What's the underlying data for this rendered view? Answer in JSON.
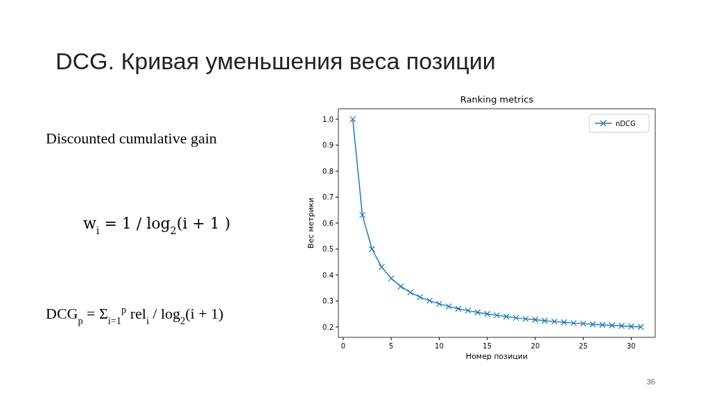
{
  "chart_data": {
    "type": "line",
    "title": "Ranking metrics",
    "xlabel": "Номер позиции",
    "ylabel": "Вес метрики",
    "x": [
      1,
      2,
      3,
      4,
      5,
      6,
      7,
      8,
      9,
      10,
      11,
      12,
      13,
      14,
      15,
      16,
      17,
      18,
      19,
      20,
      21,
      22,
      23,
      24,
      25,
      26,
      27,
      28,
      29,
      30,
      31
    ],
    "series": [
      {
        "name": "nDCG",
        "color": "#1f77b4",
        "values": [
          1.0,
          0.631,
          0.5,
          0.431,
          0.387,
          0.356,
          0.333,
          0.315,
          0.301,
          0.289,
          0.279,
          0.27,
          0.263,
          0.256,
          0.25,
          0.245,
          0.24,
          0.235,
          0.231,
          0.228,
          0.224,
          0.221,
          0.218,
          0.215,
          0.213,
          0.21,
          0.208,
          0.206,
          0.204,
          0.202,
          0.2
        ]
      }
    ],
    "xlim": [
      -0.5,
      32.5
    ],
    "xticks": [
      0,
      5,
      10,
      15,
      20,
      25,
      30
    ],
    "ylim": [
      0.16,
      1.04
    ],
    "yticks": [
      {
        "value": 0.2,
        "label": "0.2"
      },
      {
        "value": 0.3,
        "label": "0.3"
      },
      {
        "value": 0.4,
        "label": "0.4"
      },
      {
        "value": 0.5,
        "label": "0.5"
      },
      {
        "value": 0.6,
        "label": "0.6"
      },
      {
        "value": 0.7,
        "label": "0.7"
      },
      {
        "value": 0.8,
        "label": "0.8"
      },
      {
        "value": 0.9,
        "label": "0.9"
      },
      {
        "value": 1.0,
        "label": "1.0"
      }
    ],
    "legend": "top right",
    "marker": "cross",
    "line_style": "solid",
    "grid": false,
    "annotations": [
      "DCG. Кривая уменьшения веса позиции",
      "Discounted cumulative gain",
      "w$_{i}$ = 1 / log$_{2}$(i + 1 )",
      "DCG$_{p}$ = Σ$_{i=1}$$^{p}$ rel$_{i}$ / log$_{2}$(i + 1)",
      "36"
    ]
  }
}
